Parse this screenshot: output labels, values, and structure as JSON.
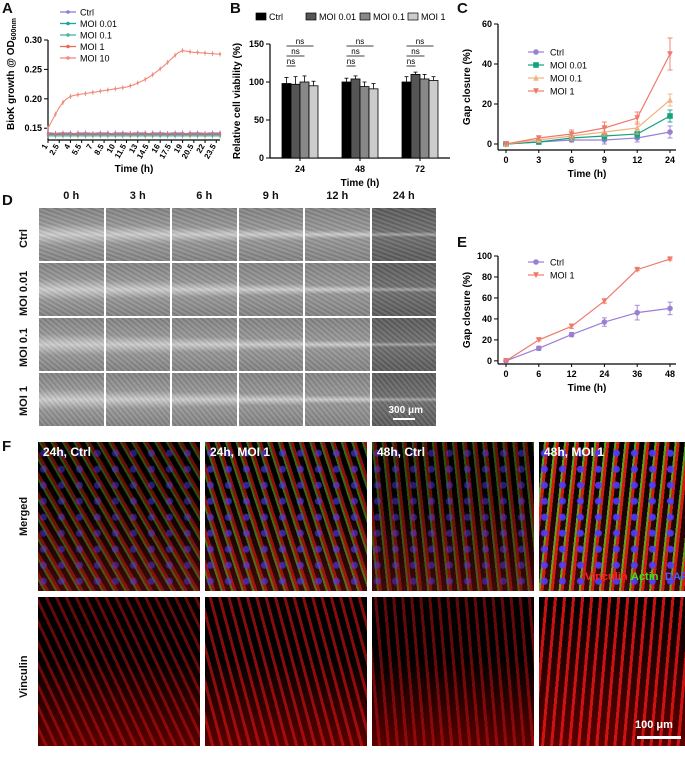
{
  "panels": {
    "a": "A",
    "b": "B",
    "c": "C",
    "d": "D",
    "e": "E",
    "f": "F"
  },
  "chart_data": [
    {
      "id": "A",
      "type": "line",
      "xlabel": "Time (h)",
      "ylabel_main": "BioK growth @ OD",
      "ylabel_sub": "600nm",
      "ylim": [
        0.13,
        0.3
      ],
      "yticks": [
        "0.15",
        "0.20",
        "0.25",
        "0.30"
      ],
      "xticks": [
        "1",
        "2.5",
        "4",
        "5.5",
        "7",
        "8.5",
        "10",
        "11.5",
        "13",
        "14.5",
        "16",
        "17.5",
        "19",
        "20.5",
        "22",
        "23.5"
      ],
      "x": [
        1,
        1.5,
        2,
        2.5,
        3,
        3.5,
        4,
        4.5,
        5,
        5.5,
        6,
        6.5,
        7,
        7.5,
        8,
        8.5,
        9,
        9.5,
        10,
        10.5,
        11,
        11.5,
        12,
        12.5,
        13,
        13.5,
        14,
        14.5,
        15,
        15.5,
        16,
        16.5,
        17,
        17.5,
        18,
        18.5,
        19,
        19.5,
        20,
        20.5,
        21,
        21.5,
        22,
        22.5,
        23,
        23.5,
        24
      ],
      "series": [
        {
          "name": "Ctrl",
          "color": "#8a7fd0",
          "values": [
            0.142,
            0.142,
            0.141,
            0.142,
            0.142,
            0.142,
            0.142,
            0.141,
            0.142,
            0.142,
            0.142,
            0.142,
            0.141,
            0.142,
            0.142,
            0.142,
            0.142,
            0.141,
            0.142,
            0.142,
            0.142,
            0.142,
            0.141,
            0.142,
            0.142,
            0.142,
            0.142,
            0.141,
            0.142,
            0.142,
            0.142,
            0.142,
            0.141,
            0.142,
            0.142,
            0.142,
            0.142,
            0.141,
            0.142,
            0.142,
            0.142,
            0.142,
            0.141,
            0.142,
            0.142,
            0.142,
            0.142
          ]
        },
        {
          "name": "MOI 0.01",
          "color": "#1aa5a0",
          "values": [
            0.139,
            0.139,
            0.139,
            0.139,
            0.139,
            0.139,
            0.139,
            0.139,
            0.139,
            0.139,
            0.139,
            0.139,
            0.139,
            0.139,
            0.139,
            0.139,
            0.139,
            0.139,
            0.139,
            0.139,
            0.139,
            0.139,
            0.139,
            0.139,
            0.139,
            0.139,
            0.139,
            0.139,
            0.139,
            0.139,
            0.139,
            0.139,
            0.139,
            0.139,
            0.139,
            0.139,
            0.139,
            0.139,
            0.139,
            0.139,
            0.139,
            0.139,
            0.139,
            0.139,
            0.139,
            0.139,
            0.139
          ]
        },
        {
          "name": "MOI 0.1",
          "color": "#4ab3a3",
          "values": [
            0.137,
            0.137,
            0.137,
            0.137,
            0.137,
            0.137,
            0.137,
            0.137,
            0.137,
            0.137,
            0.137,
            0.137,
            0.137,
            0.137,
            0.137,
            0.137,
            0.137,
            0.137,
            0.137,
            0.137,
            0.137,
            0.137,
            0.137,
            0.137,
            0.137,
            0.137,
            0.137,
            0.137,
            0.137,
            0.137,
            0.137,
            0.137,
            0.137,
            0.137,
            0.137,
            0.137,
            0.137,
            0.137,
            0.137,
            0.137,
            0.137,
            0.137,
            0.137,
            0.137,
            0.137,
            0.137,
            0.137
          ]
        },
        {
          "name": "MOI 1",
          "color": "#e96a5a",
          "values": [
            0.14,
            0.14,
            0.14,
            0.14,
            0.14,
            0.14,
            0.14,
            0.14,
            0.14,
            0.14,
            0.14,
            0.14,
            0.14,
            0.14,
            0.14,
            0.14,
            0.14,
            0.14,
            0.14,
            0.14,
            0.14,
            0.14,
            0.14,
            0.14,
            0.14,
            0.14,
            0.14,
            0.14,
            0.14,
            0.14,
            0.14,
            0.14,
            0.14,
            0.14,
            0.14,
            0.14,
            0.14,
            0.14,
            0.14,
            0.14,
            0.14,
            0.14,
            0.14,
            0.14,
            0.14,
            0.14,
            0.14
          ]
        },
        {
          "name": "MOI 10",
          "color": "#f08a7a",
          "values": [
            0.15,
            0.162,
            0.174,
            0.185,
            0.194,
            0.2,
            0.204,
            0.206,
            0.207,
            0.208,
            0.209,
            0.21,
            0.211,
            0.212,
            0.213,
            0.214,
            0.215,
            0.216,
            0.217,
            0.218,
            0.219,
            0.22,
            0.222,
            0.224,
            0.227,
            0.23,
            0.233,
            0.237,
            0.241,
            0.246,
            0.251,
            0.256,
            0.262,
            0.268,
            0.274,
            0.279,
            0.282,
            0.281,
            0.28,
            0.279,
            0.279,
            0.278,
            0.278,
            0.277,
            0.277,
            0.276,
            0.276
          ]
        }
      ]
    },
    {
      "id": "B",
      "type": "bar",
      "xlabel": "Time (h)",
      "ylabel": "Relative cell viability (%)",
      "ylim": [
        0,
        150
      ],
      "yticks": [
        "0",
        "50",
        "100",
        "150"
      ],
      "categories": [
        "24",
        "48",
        "72"
      ],
      "series": [
        {
          "name": "Ctrl",
          "color": "#000000",
          "values": [
            98,
            100,
            100
          ],
          "err": [
            8,
            5,
            7
          ]
        },
        {
          "name": "MOI 0.01",
          "color": "#555555",
          "values": [
            97,
            104,
            110
          ],
          "err": [
            10,
            4,
            3
          ]
        },
        {
          "name": "MOI 0.1",
          "color": "#888888",
          "values": [
            100,
            94,
            104
          ],
          "err": [
            8,
            6,
            6
          ]
        },
        {
          "name": "MOI 1",
          "color": "#cccccc",
          "values": [
            95,
            91,
            102
          ],
          "err": [
            6,
            7,
            5
          ]
        }
      ],
      "annotation": "ns"
    },
    {
      "id": "C",
      "type": "line",
      "xlabel": "Time (h)",
      "ylabel": "Gap closure (%)",
      "ylim": [
        -3,
        60
      ],
      "yticks": [
        "0",
        "20",
        "40",
        "60"
      ],
      "xticks": [
        "0",
        "3",
        "6",
        "9",
        "12",
        "24"
      ],
      "x": [
        "0",
        "3",
        "6",
        "9",
        "12",
        "24"
      ],
      "series": [
        {
          "name": "Ctrl",
          "color": "#9b7fd4",
          "marker": "circle",
          "values": [
            0,
            1,
            2,
            2,
            3,
            6
          ],
          "err": [
            0,
            1,
            1,
            2,
            2,
            3
          ]
        },
        {
          "name": "MOI 0.01",
          "color": "#12a37a",
          "marker": "square",
          "values": [
            0,
            1,
            3,
            4,
            5,
            14
          ],
          "err": [
            0,
            1,
            1,
            2,
            2,
            3
          ]
        },
        {
          "name": "MOI 0.1",
          "color": "#f4b183",
          "marker": "triangle",
          "values": [
            0,
            2,
            4,
            6,
            8,
            22
          ],
          "err": [
            0,
            1,
            2,
            2,
            3,
            3
          ]
        },
        {
          "name": "MOI 1",
          "color": "#f07a6a",
          "marker": "triangle-down",
          "values": [
            0,
            3,
            5,
            8,
            13,
            45
          ],
          "err": [
            0,
            1,
            2,
            3,
            3,
            8
          ]
        }
      ]
    },
    {
      "id": "E",
      "type": "line",
      "xlabel": "Time (h)",
      "ylabel": "Gap closure (%)",
      "ylim": [
        -3,
        100
      ],
      "yticks": [
        "0",
        "20",
        "40",
        "60",
        "80",
        "100"
      ],
      "xticks": [
        "0",
        "6",
        "12",
        "24",
        "36",
        "48"
      ],
      "x": [
        "0",
        "6",
        "12",
        "24",
        "36",
        "48"
      ],
      "series": [
        {
          "name": "Ctrl",
          "color": "#9b7fd4",
          "marker": "circle",
          "values": [
            0,
            12,
            25,
            37,
            46,
            50
          ],
          "err": [
            0,
            2,
            2,
            4,
            7,
            6
          ]
        },
        {
          "name": "MOI 1",
          "color": "#f07a6a",
          "marker": "triangle-down",
          "values": [
            0,
            20,
            33,
            57,
            87,
            97
          ],
          "err": [
            0,
            1,
            2,
            2,
            1,
            1
          ]
        }
      ]
    }
  ],
  "scratch": {
    "cols": [
      "0 h",
      "3 h",
      "6 h",
      "9 h",
      "12 h",
      "24 h"
    ],
    "rows": [
      "Ctrl",
      "MOI 0.01",
      "MOI 0.1",
      "MOI 1"
    ],
    "scale": "300 μm"
  },
  "fluor": {
    "cols": [
      "24h, Ctrl",
      "24h, MOI 1",
      "48h, Ctrl",
      "48h, MOI 1"
    ],
    "rows": [
      "Merged",
      "Vinculin"
    ],
    "legend_vinculin": "Vinculin",
    "legend_actin": "Actin",
    "legend_dapi": "DAPI",
    "scale": "100 μm"
  }
}
